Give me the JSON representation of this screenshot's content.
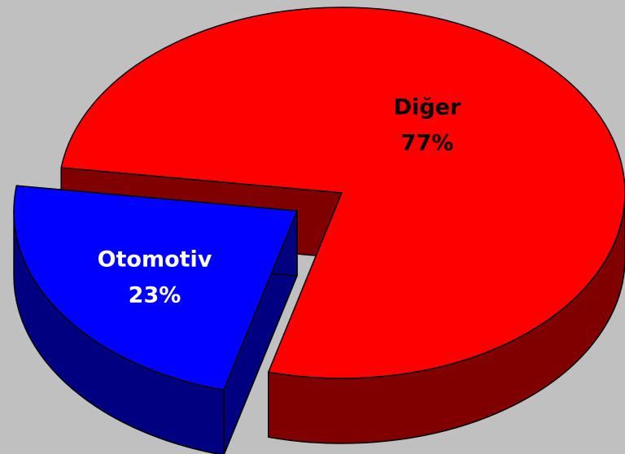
{
  "chart_data": {
    "type": "pie3d",
    "categories": [
      "Diğer",
      "Otomotiv"
    ],
    "values": [
      77,
      23
    ],
    "value_labels": [
      "77%",
      "23%"
    ],
    "colors": [
      "#ff0000",
      "#0000ff"
    ],
    "side_colors": [
      "#800000",
      "#000080"
    ]
  }
}
